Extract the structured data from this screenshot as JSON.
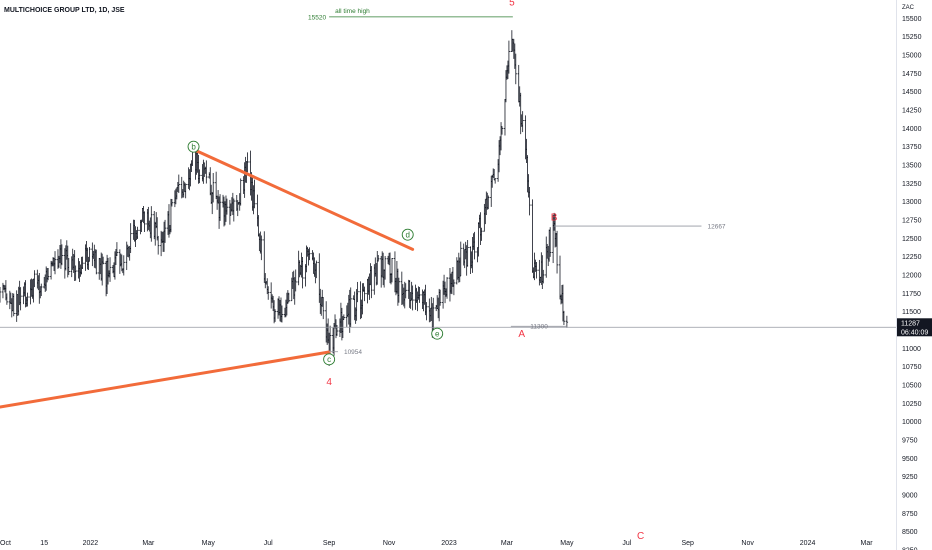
{
  "header": {
    "symbol": "MULTICHOICE GROUP LTD, 1D, JSE"
  },
  "currency_unit": "ZAC",
  "last_price_badge": {
    "price": "11287",
    "countdown": "06:40:09"
  },
  "colors": {
    "bars": "#131722",
    "trendline": "#f26b3a",
    "wave_red": "#f23645",
    "wave_green": "#2e7d32",
    "level_gray": "#9598a1",
    "ath_green": "#2e7d32"
  },
  "chart_data": {
    "type": "ohlc",
    "title": "MULTICHOICE GROUP LTD, 1D, JSE",
    "ylim": [
      8250,
      15750
    ],
    "yticks": [
      8250,
      8500,
      8750,
      9000,
      9250,
      9500,
      9750,
      10000,
      10250,
      10500,
      10750,
      11000,
      11250,
      11500,
      11750,
      12000,
      12250,
      12500,
      12750,
      13000,
      13250,
      13500,
      13750,
      14000,
      14250,
      14500,
      14750,
      15000,
      15250,
      15500
    ],
    "xlim": [
      "2021-10-01",
      "2024-03-31"
    ],
    "xticks": [
      {
        "date": "2021-10-01",
        "label": "Oct"
      },
      {
        "date": "2021-11-15",
        "label": "15"
      },
      {
        "date": "2022-01-01",
        "label": "2022"
      },
      {
        "date": "2022-03-01",
        "label": "Mar"
      },
      {
        "date": "2022-05-01",
        "label": "May"
      },
      {
        "date": "2022-07-01",
        "label": "Jul"
      },
      {
        "date": "2022-09-01",
        "label": "Sep"
      },
      {
        "date": "2022-11-01",
        "label": "Nov"
      },
      {
        "date": "2023-01-01",
        "label": "2023"
      },
      {
        "date": "2023-03-01",
        "label": "Mar"
      },
      {
        "date": "2023-05-01",
        "label": "May"
      },
      {
        "date": "2023-07-01",
        "label": "Jul"
      },
      {
        "date": "2023-09-01",
        "label": "Sep"
      },
      {
        "date": "2023-11-01",
        "label": "Nov"
      },
      {
        "date": "2024-01-01",
        "label": "2024"
      },
      {
        "date": "2024-03-01",
        "label": "Mar"
      }
    ],
    "closes": [
      [
        "2021-10-01",
        11700
      ],
      [
        "2021-10-15",
        11550
      ],
      [
        "2021-11-01",
        11800
      ],
      [
        "2021-11-15",
        11900
      ],
      [
        "2021-12-01",
        12350
      ],
      [
        "2021-12-15",
        12100
      ],
      [
        "2021-12-31",
        12250
      ],
      [
        "2022-01-15",
        11950
      ],
      [
        "2022-02-01",
        12200
      ],
      [
        "2022-02-15",
        12650
      ],
      [
        "2022-03-01",
        12800
      ],
      [
        "2022-03-15",
        12450
      ],
      [
        "2022-04-01",
        13100
      ],
      [
        "2022-04-15",
        13550
      ],
      [
        "2022-04-25",
        13450
      ],
      [
        "2022-05-10",
        12950
      ],
      [
        "2022-05-25",
        12900
      ],
      [
        "2022-06-10",
        13400
      ],
      [
        "2022-06-20",
        12800
      ],
      [
        "2022-07-01",
        11700
      ],
      [
        "2022-07-15",
        11450
      ],
      [
        "2022-08-01",
        12050
      ],
      [
        "2022-08-15",
        12350
      ],
      [
        "2022-08-25",
        11600
      ],
      [
        "2022-09-01",
        11050
      ],
      [
        "2022-09-15",
        11400
      ],
      [
        "2022-10-01",
        11600
      ],
      [
        "2022-10-15",
        11950
      ],
      [
        "2022-11-01",
        12200
      ],
      [
        "2022-11-15",
        11650
      ],
      [
        "2022-12-01",
        11850
      ],
      [
        "2022-12-15",
        11450
      ],
      [
        "2022-12-25",
        11700
      ],
      [
        "2023-01-10",
        12150
      ],
      [
        "2023-01-25",
        12300
      ],
      [
        "2023-02-05",
        12850
      ],
      [
        "2023-02-15",
        13200
      ],
      [
        "2023-02-25",
        14200
      ],
      [
        "2023-03-05",
        15450
      ],
      [
        "2023-03-10",
        14600
      ],
      [
        "2023-03-20",
        13900
      ],
      [
        "2023-03-27",
        12150
      ],
      [
        "2023-04-05",
        12000
      ],
      [
        "2023-04-12",
        12400
      ],
      [
        "2023-04-18",
        12650
      ],
      [
        "2023-04-25",
        11700
      ],
      [
        "2023-05-01",
        11287
      ]
    ],
    "last_close": 11287,
    "trendlines": [
      {
        "name": "upper",
        "from": [
          "2022-04-18",
          13700
        ],
        "to": [
          "2022-11-25",
          12350
        ]
      },
      {
        "name": "lower",
        "from": [
          "2021-10-01",
          10200
        ],
        "to": [
          "2022-09-01",
          10950
        ]
      }
    ],
    "levels": [
      {
        "from": "2023-03-05",
        "to": "2023-05-01",
        "value": 11300,
        "label": "11300"
      },
      {
        "from": "2023-04-18",
        "to": "2023-09-15",
        "value": 12667,
        "label": "12667"
      },
      {
        "from": "2022-09-01",
        "to": "2022-09-10",
        "value": 10954,
        "label": "10954"
      },
      {
        "from": "2022-09-01",
        "to": "2023-03-07",
        "value": 15520,
        "label": "15520",
        "note": "all time high"
      }
    ],
    "wave_labels": [
      {
        "label": "5",
        "date": "2023-03-06",
        "value": 15720,
        "style": "red"
      },
      {
        "label": "4",
        "date": "2022-09-01",
        "value": 10550,
        "style": "red"
      },
      {
        "label": "A",
        "date": "2023-03-16",
        "value": 11200,
        "style": "red"
      },
      {
        "label": "B",
        "date": "2023-04-18",
        "value": 12790,
        "style": "red"
      },
      {
        "label": "C",
        "date": "2023-07-15",
        "value": 8450,
        "style": "red"
      },
      {
        "label": "b",
        "date": "2022-04-16",
        "value": 13750,
        "style": "green"
      },
      {
        "label": "c",
        "date": "2022-09-01",
        "value": 10850,
        "style": "green"
      },
      {
        "label": "d",
        "date": "2022-11-20",
        "value": 12550,
        "style": "green"
      },
      {
        "label": "e",
        "date": "2022-12-20",
        "value": 11200,
        "style": "green"
      }
    ]
  }
}
